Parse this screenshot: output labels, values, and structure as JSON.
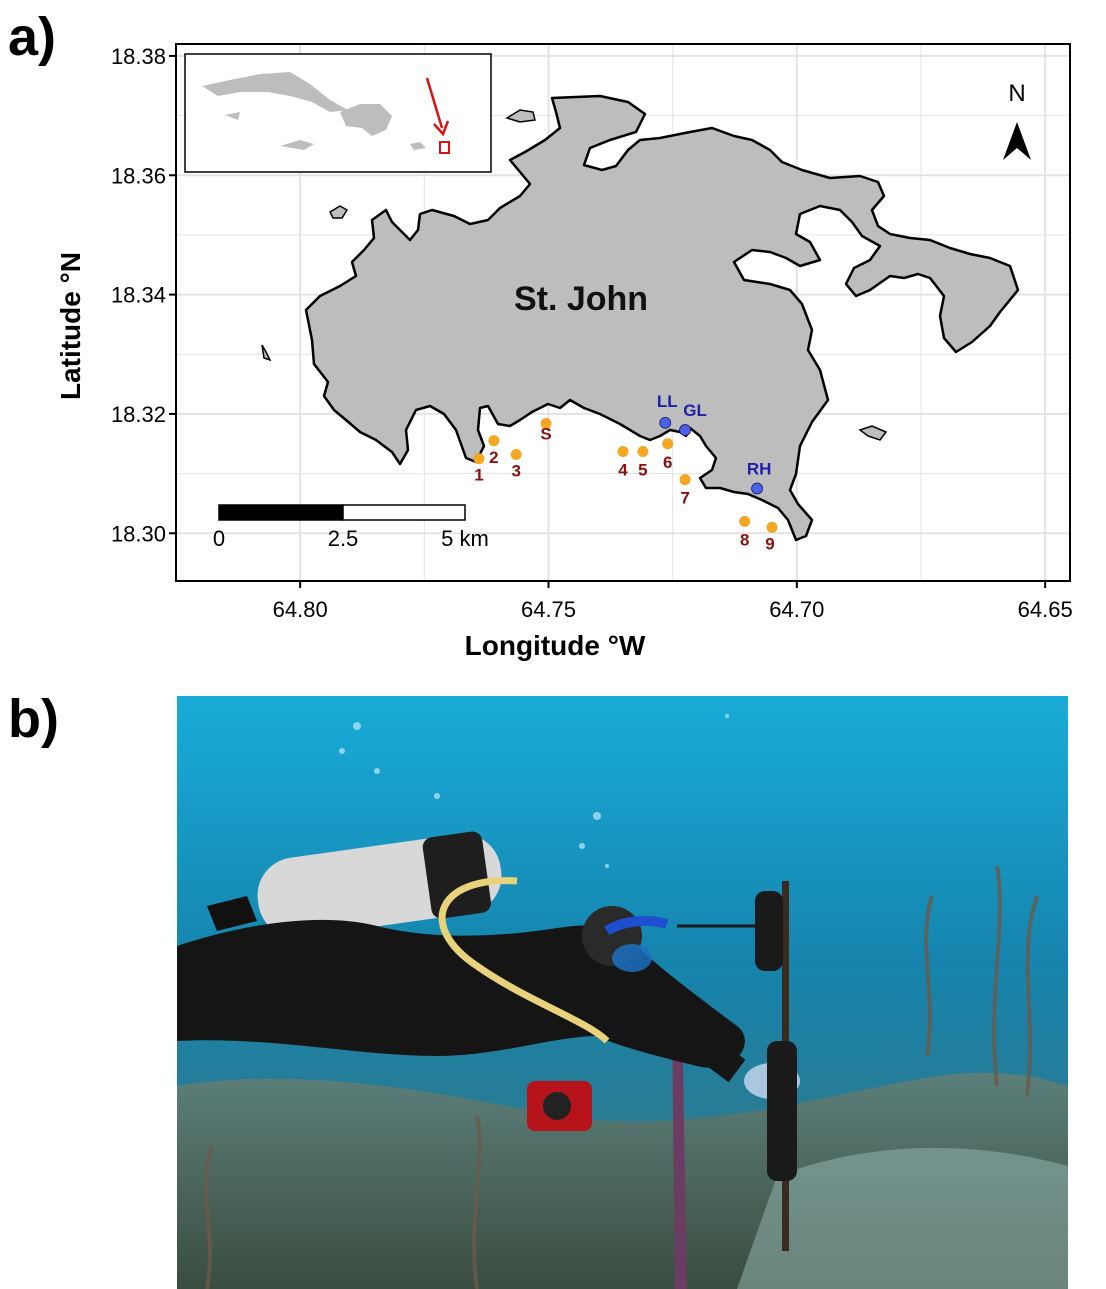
{
  "panels": {
    "a_label": "a)",
    "b_label": "b)"
  },
  "map": {
    "island_name": "St. John",
    "xlabel": "Longitude °W",
    "ylabel": "Latitude °N",
    "x_ticks": [
      "64.80",
      "64.75",
      "64.70",
      "64.65"
    ],
    "y_ticks": [
      "18.38",
      "18.36",
      "18.34",
      "18.32",
      "18.30"
    ],
    "x_range": [
      64.825,
      64.645
    ],
    "y_range": [
      18.292,
      18.382
    ],
    "north_label": "N",
    "scale_bar": {
      "labels": [
        "0",
        "2.5",
        "5 km"
      ]
    },
    "sites_orange": [
      {
        "label": "1",
        "lon": 64.764,
        "lat": 18.3125
      },
      {
        "label": "2",
        "lon": 64.761,
        "lat": 18.3155
      },
      {
        "label": "3",
        "lon": 64.7565,
        "lat": 18.3132
      },
      {
        "label": "S",
        "lon": 64.7505,
        "lat": 18.3184
      },
      {
        "label": "4",
        "lon": 64.735,
        "lat": 18.3137
      },
      {
        "label": "5",
        "lon": 64.731,
        "lat": 18.3137
      },
      {
        "label": "6",
        "lon": 64.726,
        "lat": 18.315
      },
      {
        "label": "7",
        "lon": 64.7225,
        "lat": 18.309
      },
      {
        "label": "8",
        "lon": 64.7105,
        "lat": 18.302
      },
      {
        "label": "9",
        "lon": 64.705,
        "lat": 18.301
      }
    ],
    "sites_blue": [
      {
        "label": "LL",
        "lon": 64.7265,
        "lat": 18.3185
      },
      {
        "label": "GL",
        "lon": 64.7225,
        "lat": 18.3173
      },
      {
        "label": "RH",
        "lon": 64.708,
        "lat": 18.3075
      }
    ],
    "colors": {
      "land": "#bdbdbd",
      "orange_site": "#f5a623",
      "blue_site": "#4a62e8",
      "grid": "#e3e3e3",
      "inset_arrow": "#e01010"
    }
  },
  "photo": {
    "subject": "scuba-diver-with-instrument",
    "colors": {
      "water_top": "#18a9d8",
      "water_mid": "#1580a8",
      "reef": "#4d6a5c"
    }
  }
}
